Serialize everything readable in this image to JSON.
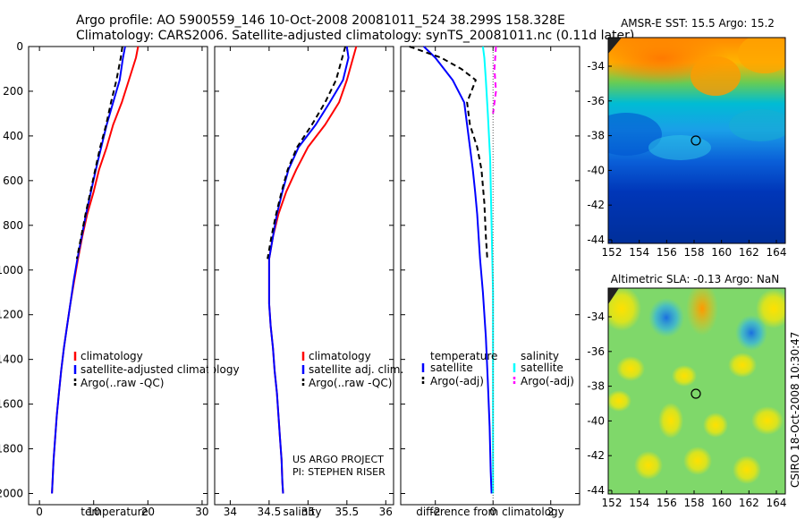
{
  "header": {
    "line1": "Argo profile: AO 5900559_146 10-Oct-2008 20081011_524 38.299S 158.328E",
    "line2": "Climatology: CARS2006. Satellite-adjusted climatology: synTS_20081011.nc (0.11d later)"
  },
  "credits": {
    "project": "US ARGO PROJECT",
    "pi": "PI: STEPHEN RISER",
    "csiro": "CSIRO 18-Oct-2008 10:30:47"
  },
  "colors": {
    "climatology": "#ff0000",
    "satellite": "#0000ff",
    "argo": "#000000",
    "sal_satellite": "#00ffff",
    "sal_argo": "#ff00ff"
  },
  "chart_data": [
    {
      "id": "temperature",
      "type": "line",
      "xlabel": "temperature",
      "xlim": [
        -2,
        31
      ],
      "ylim": [
        0,
        2050
      ],
      "y_reversed": true,
      "xticks": [
        0,
        10,
        20,
        30
      ],
      "yticks": [
        0,
        200,
        400,
        600,
        800,
        1000,
        1200,
        1400,
        1600,
        1800,
        2000
      ],
      "legend": [
        "climatology",
        "satellite-adjusted climatology",
        "Argo(..raw -QC)"
      ],
      "series": [
        {
          "name": "climatology",
          "color": "#ff0000",
          "points": [
            [
              18.2,
              0
            ],
            [
              17.8,
              50
            ],
            [
              16.5,
              150
            ],
            [
              15.2,
              250
            ],
            [
              13.6,
              350
            ],
            [
              12.4,
              450
            ],
            [
              11.0,
              550
            ],
            [
              10.0,
              650
            ],
            [
              8.8,
              750
            ],
            [
              7.9,
              850
            ],
            [
              7.1,
              950
            ],
            [
              6.4,
              1050
            ],
            [
              5.7,
              1150
            ],
            [
              5.1,
              1250
            ],
            [
              4.5,
              1350
            ],
            [
              4.0,
              1450
            ],
            [
              3.6,
              1550
            ],
            [
              3.2,
              1650
            ],
            [
              2.9,
              1750
            ],
            [
              2.6,
              1850
            ],
            [
              2.4,
              1950
            ],
            [
              2.3,
              2000
            ]
          ]
        },
        {
          "name": "satellite-adjusted climatology",
          "color": "#0000ff",
          "points": [
            [
              15.8,
              0
            ],
            [
              15.4,
              50
            ],
            [
              14.8,
              150
            ],
            [
              13.6,
              250
            ],
            [
              12.4,
              350
            ],
            [
              11.4,
              450
            ],
            [
              10.4,
              550
            ],
            [
              9.5,
              650
            ],
            [
              8.6,
              750
            ],
            [
              7.8,
              850
            ],
            [
              7.0,
              950
            ],
            [
              6.3,
              1050
            ],
            [
              5.7,
              1150
            ],
            [
              5.1,
              1250
            ],
            [
              4.5,
              1350
            ],
            [
              4.0,
              1450
            ],
            [
              3.6,
              1550
            ],
            [
              3.2,
              1650
            ],
            [
              2.9,
              1750
            ],
            [
              2.6,
              1850
            ],
            [
              2.4,
              1950
            ],
            [
              2.3,
              2000
            ]
          ]
        },
        {
          "name": "Argo(..raw -QC)",
          "color": "#000000",
          "dashed": true,
          "points": [
            [
              15.3,
              0
            ],
            [
              15.0,
              50
            ],
            [
              14.2,
              150
            ],
            [
              13.2,
              250
            ],
            [
              12.3,
              350
            ],
            [
              11.2,
              450
            ],
            [
              10.3,
              550
            ],
            [
              9.4,
              650
            ],
            [
              8.5,
              750
            ],
            [
              7.7,
              850
            ],
            [
              6.9,
              950
            ]
          ]
        }
      ]
    },
    {
      "id": "salinity",
      "type": "line",
      "xlabel": "salinity",
      "xlim": [
        33.8,
        36.1
      ],
      "ylim": [
        0,
        2050
      ],
      "y_reversed": true,
      "xticks": [
        34,
        34.5,
        35,
        35.5,
        36
      ],
      "legend": [
        "climatology",
        "satellite adj. clim.",
        "Argo(..raw -QC)"
      ],
      "series": [
        {
          "name": "climatology",
          "color": "#ff0000",
          "points": [
            [
              35.62,
              0
            ],
            [
              35.58,
              50
            ],
            [
              35.5,
              150
            ],
            [
              35.4,
              250
            ],
            [
              35.22,
              350
            ],
            [
              35.0,
              450
            ],
            [
              34.85,
              550
            ],
            [
              34.72,
              650
            ],
            [
              34.62,
              750
            ],
            [
              34.55,
              850
            ],
            [
              34.5,
              950
            ],
            [
              34.5,
              1050
            ],
            [
              34.5,
              1150
            ],
            [
              34.52,
              1250
            ],
            [
              34.55,
              1350
            ],
            [
              34.57,
              1450
            ],
            [
              34.6,
              1550
            ],
            [
              34.62,
              1650
            ],
            [
              34.64,
              1750
            ],
            [
              34.66,
              1850
            ],
            [
              34.67,
              1950
            ],
            [
              34.68,
              2000
            ]
          ]
        },
        {
          "name": "satellite adj. clim.",
          "color": "#0000ff",
          "points": [
            [
              35.5,
              0
            ],
            [
              35.52,
              50
            ],
            [
              35.45,
              150
            ],
            [
              35.28,
              250
            ],
            [
              35.1,
              350
            ],
            [
              34.88,
              450
            ],
            [
              34.75,
              550
            ],
            [
              34.67,
              650
            ],
            [
              34.6,
              750
            ],
            [
              34.55,
              850
            ],
            [
              34.5,
              950
            ],
            [
              34.5,
              1050
            ],
            [
              34.5,
              1150
            ],
            [
              34.52,
              1250
            ],
            [
              34.55,
              1350
            ],
            [
              34.57,
              1450
            ],
            [
              34.6,
              1550
            ],
            [
              34.62,
              1650
            ],
            [
              34.64,
              1750
            ],
            [
              34.66,
              1850
            ],
            [
              34.67,
              1950
            ],
            [
              34.68,
              2000
            ]
          ]
        },
        {
          "name": "Argo(..raw -QC)",
          "color": "#000000",
          "dashed": true,
          "points": [
            [
              35.48,
              0
            ],
            [
              35.44,
              50
            ],
            [
              35.36,
              150
            ],
            [
              35.22,
              250
            ],
            [
              35.05,
              350
            ],
            [
              34.86,
              450
            ],
            [
              34.74,
              550
            ],
            [
              34.66,
              650
            ],
            [
              34.59,
              750
            ],
            [
              34.53,
              850
            ],
            [
              34.48,
              950
            ]
          ]
        }
      ]
    },
    {
      "id": "difference",
      "type": "line",
      "xlabel": "difference from climatology",
      "xlim": [
        -3.2,
        3.0
      ],
      "ylim": [
        0,
        2050
      ],
      "y_reversed": true,
      "xticks": [
        -2,
        0,
        2
      ],
      "legend_temperature_title": "temperature",
      "legend_salinity_title": "salinity",
      "legend": [
        "satellite",
        "Argo(-adj)",
        "satellite",
        "Argo(-adj)"
      ],
      "series": [
        {
          "name": "temperature satellite",
          "color": "#0000ff",
          "points": [
            [
              -2.4,
              0
            ],
            [
              -2.0,
              50
            ],
            [
              -1.4,
              150
            ],
            [
              -1.0,
              250
            ],
            [
              -0.9,
              350
            ],
            [
              -0.8,
              450
            ],
            [
              -0.7,
              550
            ],
            [
              -0.62,
              650
            ],
            [
              -0.55,
              750
            ],
            [
              -0.5,
              850
            ],
            [
              -0.45,
              950
            ],
            [
              -0.35,
              1100
            ],
            [
              -0.25,
              1300
            ],
            [
              -0.18,
              1500
            ],
            [
              -0.12,
              1700
            ],
            [
              -0.08,
              1900
            ],
            [
              -0.05,
              2000
            ]
          ]
        },
        {
          "name": "temperature Argo(-adj)",
          "color": "#000000",
          "dashed": true,
          "points": [
            [
              -2.9,
              0
            ],
            [
              -1.8,
              50
            ],
            [
              -1.1,
              100
            ],
            [
              -0.6,
              150
            ],
            [
              -0.9,
              250
            ],
            [
              -0.8,
              350
            ],
            [
              -0.55,
              450
            ],
            [
              -0.4,
              550
            ],
            [
              -0.3,
              700
            ],
            [
              -0.25,
              850
            ],
            [
              -0.2,
              950
            ]
          ]
        },
        {
          "name": "salinity satellite",
          "color": "#00ffff",
          "points": [
            [
              -0.35,
              0
            ],
            [
              -0.3,
              50
            ],
            [
              -0.25,
              150
            ],
            [
              -0.18,
              300
            ],
            [
              -0.1,
              500
            ],
            [
              -0.05,
              800
            ],
            [
              0.0,
              1100
            ],
            [
              0.0,
              1500
            ],
            [
              0.0,
              2000
            ]
          ]
        },
        {
          "name": "salinity Argo(-adj)",
          "color": "#ff00ff",
          "dashed": true,
          "points": [
            [
              0.1,
              0
            ],
            [
              0.05,
              100
            ],
            [
              0.1,
              200
            ],
            [
              0.0,
              300
            ]
          ]
        }
      ]
    }
  ],
  "maps": [
    {
      "id": "sst",
      "title": "AMSR-E SST: 15.5 Argo: 15.2",
      "xticks": [
        "152",
        "154",
        "156",
        "158",
        "160",
        "162",
        "164"
      ],
      "yticks": [
        "-34",
        "-36",
        "-38",
        "-40",
        "-42",
        "-44"
      ]
    },
    {
      "id": "sla",
      "title": "Altimetric SLA: -0.13 Argo: NaN",
      "xticks": [
        "152",
        "154",
        "156",
        "158",
        "160",
        "162",
        "164"
      ],
      "yticks": [
        "-34",
        "-36",
        "-38",
        "-40",
        "-42",
        "-44"
      ]
    }
  ]
}
